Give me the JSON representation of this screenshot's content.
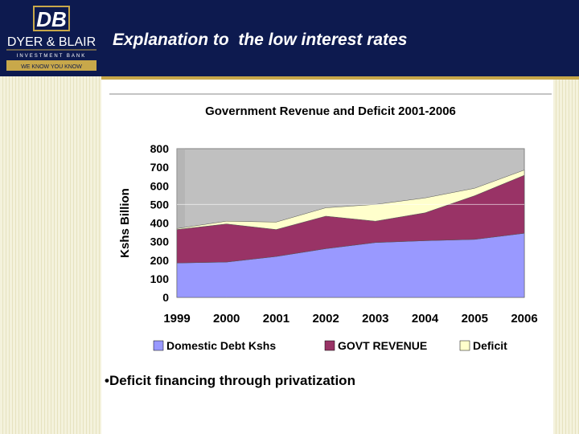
{
  "logo": {
    "monogram": "DB",
    "name": "DYER & BLAIR",
    "subtitle": "INVESTMENT BANK",
    "tagline": "WE KNOW YOU KNOW"
  },
  "slide": {
    "title": "Explanation to  the low interest rates",
    "bullet": "•Deficit financing through privatization"
  },
  "colors": {
    "header": "#0d1a4f",
    "gold": "#c8a84a",
    "domestic_debt": "#9999ff",
    "govt_revenue": "#993366",
    "deficit": "#ffffcc",
    "plot_bg": "#c0c0c0"
  },
  "chart_data": {
    "type": "area",
    "stacked": true,
    "title": "Government Revenue and Deficit 2001-2006",
    "xlabel": "",
    "ylabel": "Kshs Billion",
    "ylim": [
      0,
      800
    ],
    "yticks": [
      0,
      100,
      200,
      300,
      400,
      500,
      600,
      700,
      800
    ],
    "categories": [
      "1999",
      "2000",
      "2001",
      "2002",
      "2003",
      "2004",
      "2005",
      "2006"
    ],
    "legend_position": "bottom",
    "series": [
      {
        "name": "Domestic Debt Kshs",
        "values": [
          185,
          190,
          220,
          262,
          295,
          305,
          312,
          345
        ]
      },
      {
        "name": "GOVT REVENUE",
        "values": [
          180,
          205,
          145,
          175,
          115,
          150,
          235,
          312
        ]
      },
      {
        "name": "Deficit",
        "values": [
          5,
          15,
          40,
          45,
          90,
          80,
          40,
          28
        ]
      }
    ]
  }
}
